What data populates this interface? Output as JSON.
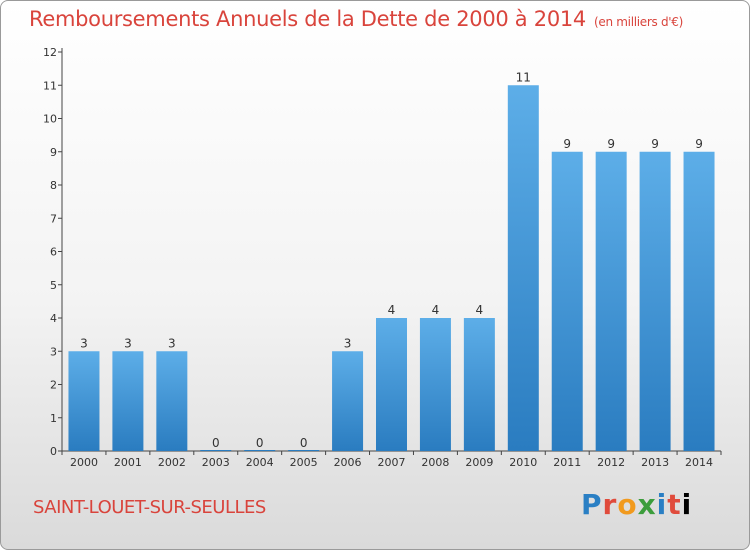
{
  "title": "Remboursements Annuels de la Dette de 2000 à 2014",
  "unit": "(en milliers d'€)",
  "town": "SAINT-LOUET-SUR-SEULLES",
  "logo": [
    "P",
    "r",
    "o",
    "x",
    "i",
    "t",
    "i"
  ],
  "chart_data": {
    "type": "bar",
    "title": "Remboursements Annuels de la Dette de 2000 à 2014",
    "subtitle": "(en milliers d'€)",
    "xlabel": "",
    "ylabel": "",
    "categories": [
      "2000",
      "2001",
      "2002",
      "2003",
      "2004",
      "2005",
      "2006",
      "2007",
      "2008",
      "2009",
      "2010",
      "2011",
      "2012",
      "2013",
      "2014"
    ],
    "values": [
      3,
      3,
      3,
      0,
      0,
      0,
      3,
      4,
      4,
      4,
      11,
      9,
      9,
      9,
      9
    ],
    "ylim": [
      0,
      12
    ],
    "yticks": [
      0,
      1,
      2,
      3,
      4,
      5,
      6,
      7,
      8,
      9,
      10,
      11,
      12
    ],
    "grid": false,
    "bar_color_top": "#5daee8",
    "bar_color_bottom": "#2a7cc0"
  }
}
